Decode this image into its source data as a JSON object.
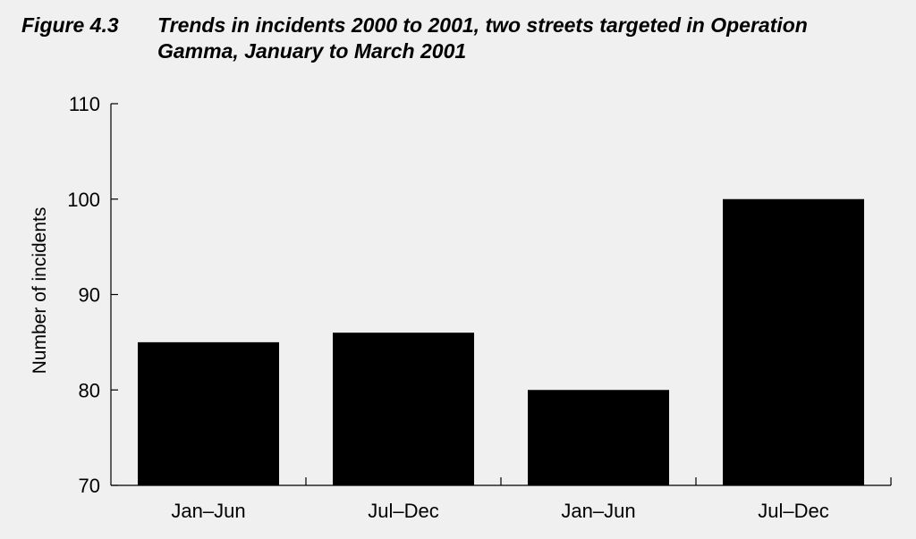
{
  "figure": {
    "label": "Figure 4.3",
    "title": "Trends in incidents 2000 to 2001, two streets targeted in Operation Gamma, January to March 2001"
  },
  "chart_data": {
    "type": "bar",
    "categories": [
      "Jan–Jun",
      "Jul–Dec",
      "Jan–Jun",
      "Jul–Dec"
    ],
    "values": [
      85,
      86,
      80,
      100
    ],
    "title": "Trends in incidents 2000 to 2001, two streets targeted in Operation Gamma, January to March 2001",
    "xlabel": "",
    "ylabel": "Number of incidents",
    "ylim": [
      70,
      110
    ],
    "yticks": [
      70,
      80,
      90,
      100,
      110
    ],
    "grid": false,
    "legend": "none",
    "bar_color": "#000000",
    "background_color": "#f0f0f0"
  }
}
